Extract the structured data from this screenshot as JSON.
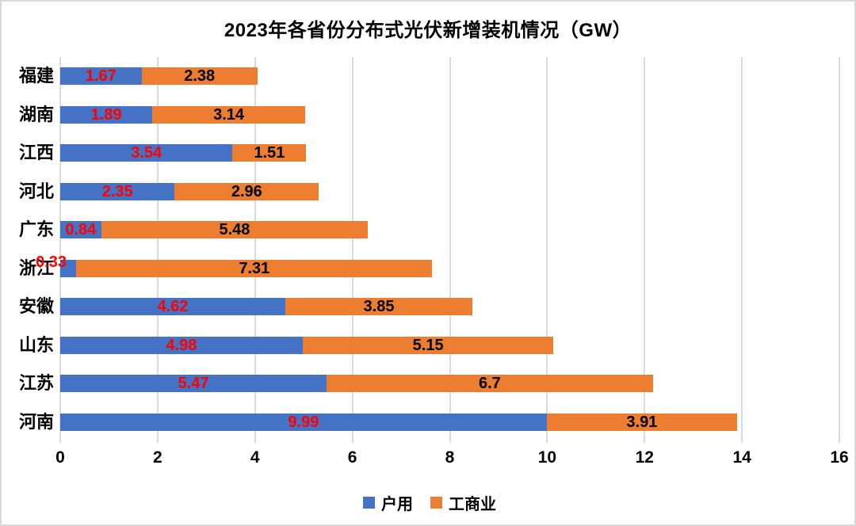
{
  "chart_data": {
    "type": "bar",
    "orientation": "horizontal",
    "stacked": true,
    "title": "2023年各省份分布式光伏新增装机情况（GW）",
    "categories": [
      "福建",
      "湖南",
      "江西",
      "河北",
      "广东",
      "浙江",
      "安徽",
      "山东",
      "江苏",
      "河南"
    ],
    "series": [
      {
        "name": "户用",
        "color": "#4472C4",
        "label_color": "#FF0000",
        "values": [
          1.67,
          1.89,
          3.54,
          2.35,
          0.84,
          0.33,
          4.62,
          4.98,
          5.47,
          9.99
        ]
      },
      {
        "name": "工商业",
        "color": "#ED7D31",
        "label_color": "#000000",
        "values": [
          2.38,
          3.14,
          1.51,
          2.96,
          5.48,
          7.31,
          3.85,
          5.15,
          6.7,
          3.91
        ]
      }
    ],
    "xlim": [
      0,
      16
    ],
    "x_ticks": [
      "0",
      "2",
      "4",
      "6",
      "8",
      "10",
      "12",
      "14",
      "16"
    ],
    "grid": true,
    "legend_position": "bottom",
    "grid_color": "#D9D9D9",
    "border_color": "#D9D9D9",
    "background": "#FFFFFF"
  }
}
